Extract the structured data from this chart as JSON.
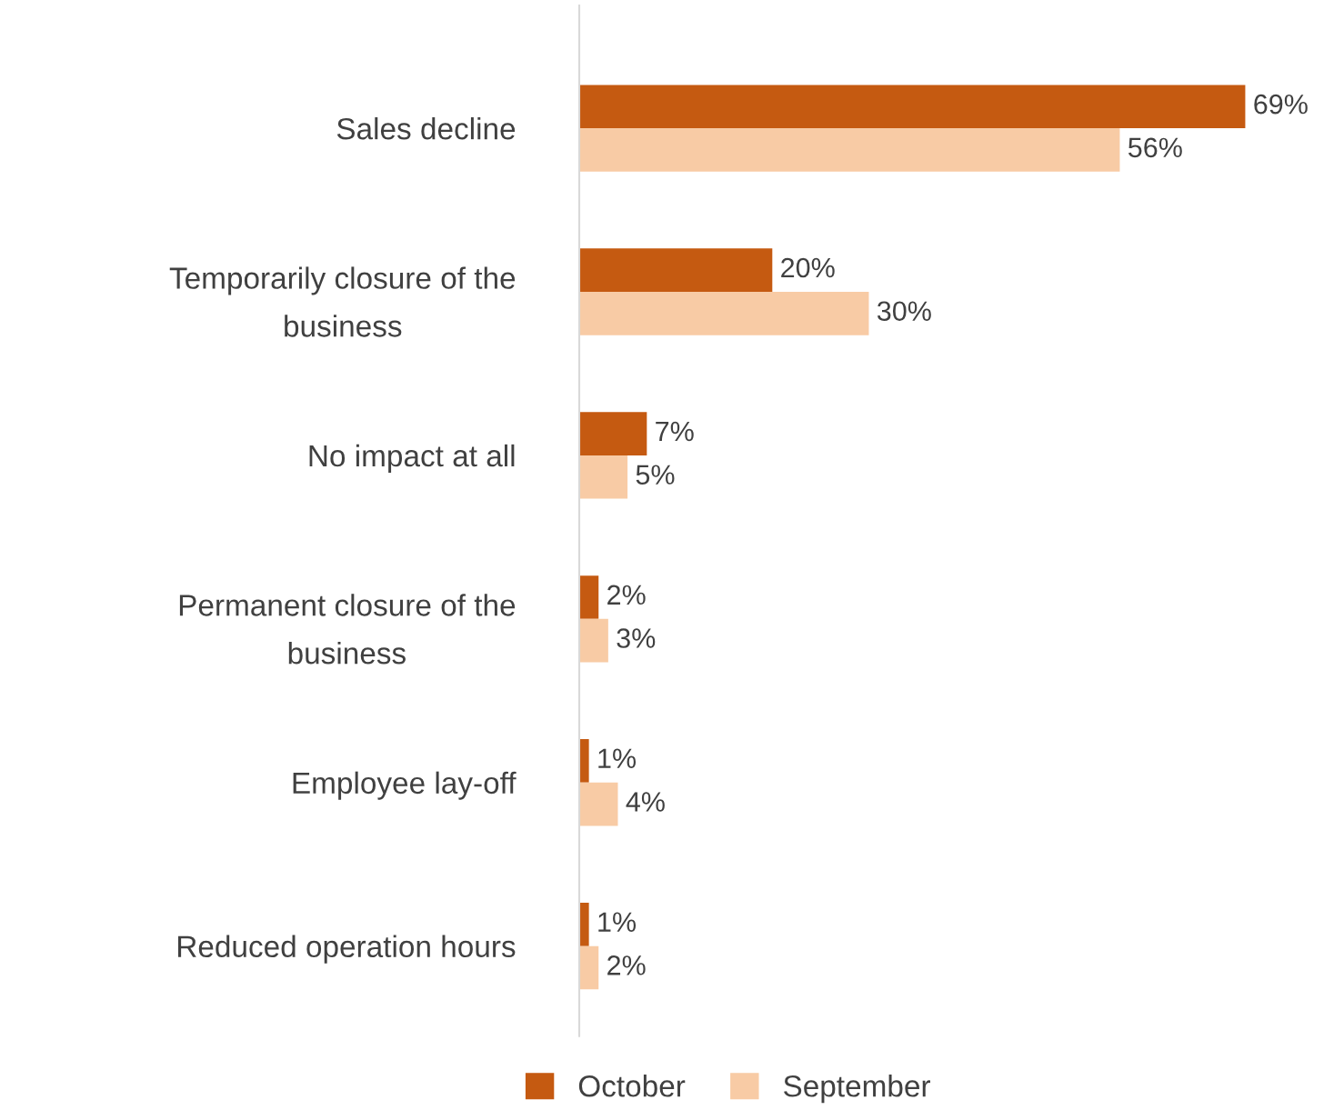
{
  "chart_data": {
    "type": "bar",
    "orientation": "horizontal",
    "data_labels": true,
    "legend": "bottom",
    "grid": false,
    "categories": [
      "Sales decline",
      "Temporarily closure of the business",
      "No impact at all",
      "Permanent closure of the business",
      "Employee lay-off",
      "Reduced operation hours"
    ],
    "series": [
      {
        "name": "October",
        "color": "#c55a11",
        "values": [
          69,
          20,
          7,
          2,
          1,
          1
        ],
        "value_labels": [
          "69%",
          "20%",
          "7%",
          "2%",
          "1%",
          "1%"
        ]
      },
      {
        "name": "September",
        "color": "#f8cba5",
        "values": [
          56,
          30,
          5,
          3,
          4,
          2
        ],
        "value_labels": [
          "56%",
          "30%",
          "5%",
          "3%",
          "4%",
          "2%"
        ]
      }
    ]
  }
}
